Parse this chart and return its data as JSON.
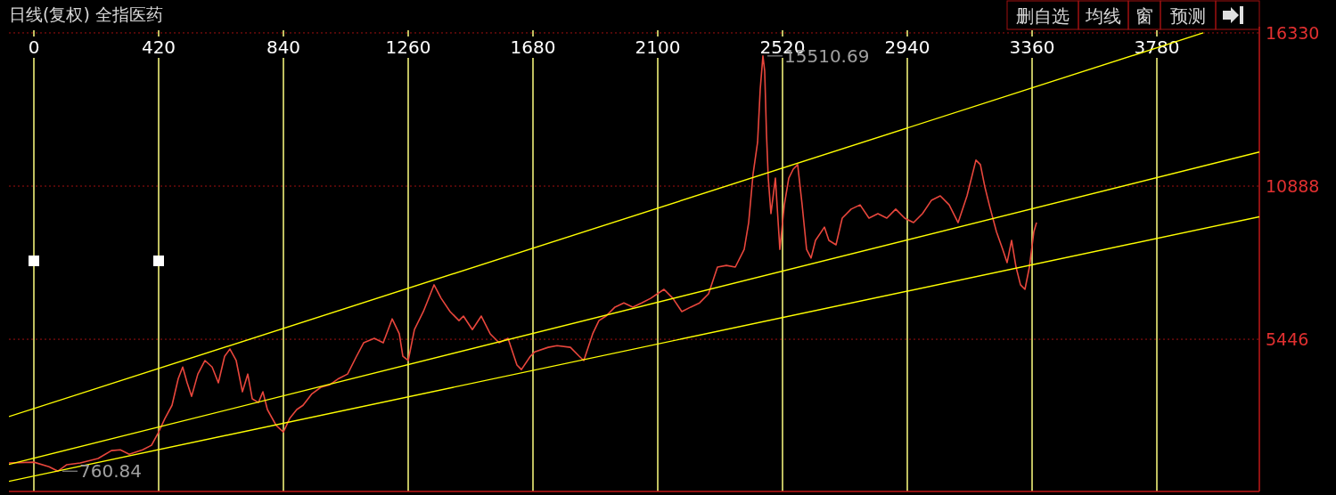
{
  "chart_data": {
    "type": "line",
    "title": "日线(复权) 全指医药",
    "annotations": [
      {
        "text": "15510.69",
        "x": 2454,
        "y": 15510.69
      },
      {
        "text": "760.84",
        "x": 81,
        "y": 760.84
      },
      "删自选",
      "均线",
      "窗",
      "预测"
    ],
    "xlim": [
      -84,
      4125
    ],
    "xticks": [
      0,
      420,
      840,
      1260,
      1680,
      2100,
      2520,
      2940,
      3360,
      3780
    ],
    "ylim": [
      40,
      16550
    ],
    "yticks": [
      5446,
      10888,
      16330
    ],
    "grid": true,
    "marker": "none",
    "line_style": "solid",
    "series": [
      {
        "color": "#e8463c",
        "x": [
          -84,
          0,
          51,
          81,
          111,
          156,
          216,
          261,
          291,
          321,
          366,
          396,
          420,
          441,
          465,
          486,
          501,
          516,
          531,
          552,
          576,
          600,
          621,
          642,
          660,
          681,
          702,
          720,
          735,
          756,
          771,
          786,
          816,
          840,
          861,
          885,
          906,
          936,
          966,
          996,
          1026,
          1056,
          1086,
          1110,
          1146,
          1176,
          1206,
          1230,
          1242,
          1260,
          1281,
          1311,
          1347,
          1371,
          1401,
          1431,
          1446,
          1476,
          1506,
          1536,
          1566,
          1596,
          1626,
          1641,
          1671,
          1686,
          1731,
          1761,
          1806,
          1836,
          1851,
          1881,
          1902,
          1926,
          1956,
          1986,
          2016,
          2046,
          2076,
          2121,
          2151,
          2181,
          2211,
          2241,
          2271,
          2301,
          2331,
          2361,
          2391,
          2406,
          2421,
          2436,
          2445,
          2454,
          2460,
          2466,
          2472,
          2481,
          2496,
          2511,
          2526,
          2541,
          2556,
          2571,
          2586,
          2601,
          2616,
          2631,
          2661,
          2676,
          2700,
          2721,
          2751,
          2781,
          2811,
          2841,
          2871,
          2901,
          2931,
          2961,
          2991,
          3021,
          3051,
          3081,
          3111,
          3141,
          3171,
          3186,
          3201,
          3216,
          3240,
          3261,
          3276,
          3291,
          3306,
          3321,
          3336,
          3351,
          3366,
          3375
        ],
        "values": [
          1050,
          1080,
          920,
          760.84,
          990,
          1050,
          1210,
          1490,
          1520,
          1360,
          1520,
          1680,
          2150,
          2630,
          3100,
          4050,
          4460,
          3900,
          3420,
          4210,
          4690,
          4460,
          3900,
          4840,
          5100,
          4690,
          3580,
          4210,
          3330,
          3200,
          3580,
          2950,
          2380,
          2150,
          2630,
          2950,
          3100,
          3510,
          3740,
          3830,
          4050,
          4210,
          4840,
          5320,
          5480,
          5320,
          6170,
          5640,
          4840,
          4690,
          5790,
          6430,
          7380,
          6900,
          6430,
          6110,
          6270,
          5790,
          6270,
          5640,
          5320,
          5480,
          4530,
          4370,
          4840,
          5000,
          5160,
          5220,
          5160,
          4840,
          4690,
          5640,
          6110,
          6270,
          6590,
          6740,
          6590,
          6740,
          6900,
          7220,
          6900,
          6430,
          6590,
          6740,
          7060,
          8010,
          8070,
          8010,
          8640,
          9590,
          11330,
          12440,
          14340,
          15510.69,
          14970,
          12750,
          11170,
          9910,
          11170,
          8640,
          10220,
          11170,
          11490,
          11650,
          10220,
          8640,
          8330,
          8960,
          9430,
          8960,
          8800,
          9750,
          10070,
          10220,
          9750,
          9910,
          9750,
          10070,
          9750,
          9590,
          9910,
          10380,
          10540,
          10220,
          9590,
          10540,
          11810,
          11650,
          10860,
          10220,
          9270,
          8640,
          8170,
          8960,
          8010,
          7380,
          7220,
          8010,
          9270,
          9590
        ]
      },
      {
        "type": "line",
        "color": "#ffff00",
        "x": [
          -84,
          3936
        ],
        "values": [
          2700,
          16330
        ]
      },
      {
        "type": "line",
        "color": "#ffff00",
        "x": [
          -84,
          4125
        ],
        "values": [
          1000,
          12100
        ]
      },
      {
        "type": "line",
        "color": "#ffff00",
        "x": [
          -84,
          4125
        ],
        "values": [
          400,
          9800
        ]
      }
    ]
  }
}
